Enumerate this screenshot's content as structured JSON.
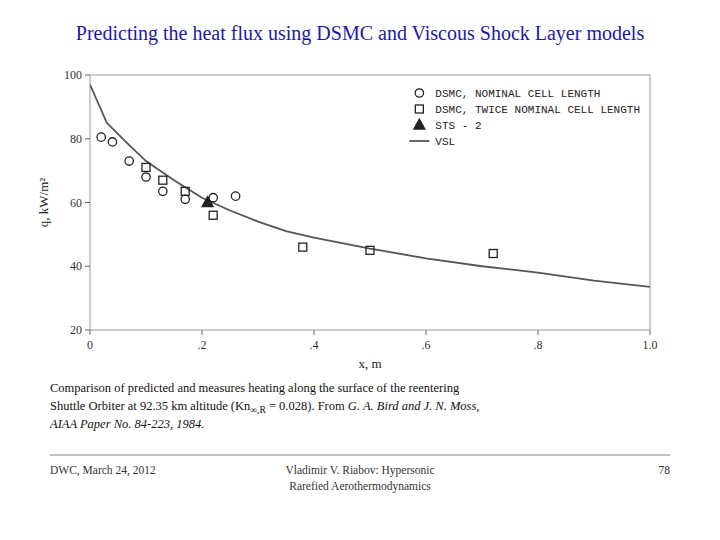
{
  "chart_data": {
    "type": "scatter",
    "title": "Predicting the heat flux using DSMC and Viscous Shock Layer models",
    "xlabel": "x, m",
    "ylabel": "q, kW/m²",
    "xlim": [
      0,
      1.0
    ],
    "ylim": [
      20,
      100
    ],
    "xticks": [
      0,
      {
        "value": 0.2,
        "label": ".2"
      },
      {
        "value": 0.4,
        "label": ".4"
      },
      {
        "value": 0.6,
        "label": ".6"
      },
      {
        "value": 0.8,
        "label": ".8"
      },
      {
        "value": 1.0,
        "label": "1.0"
      }
    ],
    "yticks": [
      20,
      40,
      60,
      80,
      100
    ],
    "grid": false,
    "legend": "upper right",
    "series": [
      {
        "name": "DSMC, NOMINAL CELL LENGTH",
        "type": "scatter",
        "marker": "open-circle",
        "color": "#222222",
        "x": [
          0.02,
          0.04,
          0.07,
          0.1,
          0.13,
          0.17,
          0.22,
          0.26
        ],
        "values": [
          80.5,
          79.0,
          73.0,
          68.0,
          63.5,
          61.0,
          61.5,
          62.0
        ]
      },
      {
        "name": "DSMC, TWICE NOMINAL CELL LENGTH",
        "type": "scatter",
        "marker": "open-square",
        "color": "#222222",
        "x": [
          0.1,
          0.13,
          0.17,
          0.22,
          0.38,
          0.5,
          0.72
        ],
        "values": [
          71.0,
          67.0,
          63.5,
          56.0,
          46.0,
          45.0,
          44.0
        ]
      },
      {
        "name": "STS - 2",
        "type": "scatter",
        "marker": "filled-triangle",
        "color": "#222222",
        "x": [
          0.21
        ],
        "values": [
          60.0
        ]
      },
      {
        "name": "VSL",
        "type": "line",
        "line_style": "solid",
        "color": "#555555",
        "x": [
          0.0,
          0.03,
          0.07,
          0.1,
          0.15,
          0.2,
          0.25,
          0.3,
          0.35,
          0.4,
          0.5,
          0.6,
          0.7,
          0.8,
          0.9,
          1.0
        ],
        "values": [
          97.0,
          85.0,
          78.0,
          73.0,
          67.0,
          61.5,
          57.5,
          54.0,
          51.0,
          49.0,
          45.5,
          42.5,
          40.0,
          38.0,
          35.5,
          33.5
        ]
      }
    ],
    "annotations": [
      "Comparison of predicted and measures heating along the surface of the reentering",
      "Shuttle Orbiter at 92.35 km altitude (Kn",
      "∞,R",
      " = 0.028). From ",
      "G. A. Bird and J. N. Moss,",
      "AIAA Paper No. 84-223, 1984.",
      "DWC, March 24, 2012",
      "Vladimir V. Riabov: Hypersonic",
      "Rarefied Aerothermodynamics",
      "78"
    ]
  }
}
